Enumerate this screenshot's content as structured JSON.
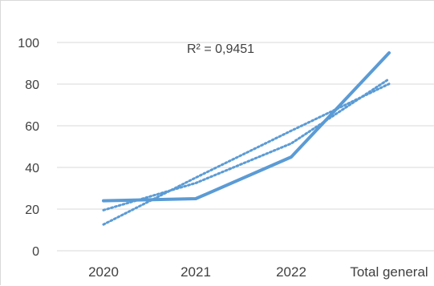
{
  "chart_data": {
    "type": "line",
    "categories": [
      "2020",
      "2021",
      "2022",
      "Total general"
    ],
    "series": [
      {
        "values": [
          24,
          25,
          45,
          95
        ],
        "style": "solid",
        "color": "#5b9bd5"
      }
    ],
    "trendlines": [
      {
        "type": "linear",
        "values": [
          12.6,
          35.1,
          57.6,
          80.1
        ],
        "style": "dotted",
        "color": "#5b9bd5"
      },
      {
        "type": "polynomial",
        "values": [
          19.5,
          32.5,
          51.5,
          82.5
        ],
        "style": "dotted",
        "color": "#5b9bd5"
      }
    ],
    "annotation": "R² = 0,9451",
    "ylim": [
      0,
      100
    ],
    "yticks": [
      "0",
      "20",
      "40",
      "60",
      "80",
      "100"
    ],
    "grid": true,
    "legend": "none",
    "colors": {
      "series": "#5b9bd5",
      "grid": "#d9d9d9",
      "text": "#404040"
    }
  }
}
